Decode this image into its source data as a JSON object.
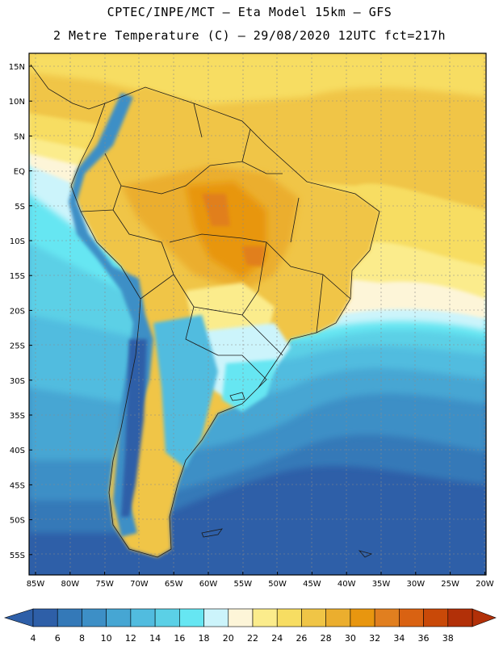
{
  "header": {
    "line1": "CPTEC/INPE/MCT –  Eta Model 15km – GFS",
    "line2": "2 Metre Temperature (C) – 29/08/2020 12UTC fct=217h"
  },
  "map": {
    "lat_labels": [
      "15N",
      "10N",
      "5N",
      "EQ",
      "5S",
      "10S",
      "15S",
      "20S",
      "25S",
      "30S",
      "35S",
      "40S",
      "45S",
      "50S",
      "55S"
    ],
    "lon_labels": [
      "85W",
      "80W",
      "75W",
      "70W",
      "65W",
      "60W",
      "55W",
      "50W",
      "45W",
      "40W",
      "35W",
      "30W",
      "25W",
      "20W"
    ]
  },
  "colorbar": {
    "labels": [
      "4",
      "6",
      "8",
      "10",
      "12",
      "14",
      "16",
      "18",
      "20",
      "22",
      "24",
      "26",
      "28",
      "30",
      "32",
      "34",
      "36",
      "38"
    ],
    "colors": [
      "#2e5fa8",
      "#3479b8",
      "#3d8fc6",
      "#46a6d3",
      "#51bcdf",
      "#5bd0e6",
      "#66e6f2",
      "#ccf4fb",
      "#fdf5d8",
      "#fbec8c",
      "#f7dd62",
      "#f0c546",
      "#ebae2e",
      "#e8960f",
      "#e17f1f",
      "#d96212",
      "#c94908",
      "#b23008"
    ],
    "low_color": "#2e5fa8",
    "high_color": "#b23008"
  },
  "palette": {
    "frame": "#000000",
    "border": "#1a1a1a",
    "grid": "#8a8a8a"
  }
}
